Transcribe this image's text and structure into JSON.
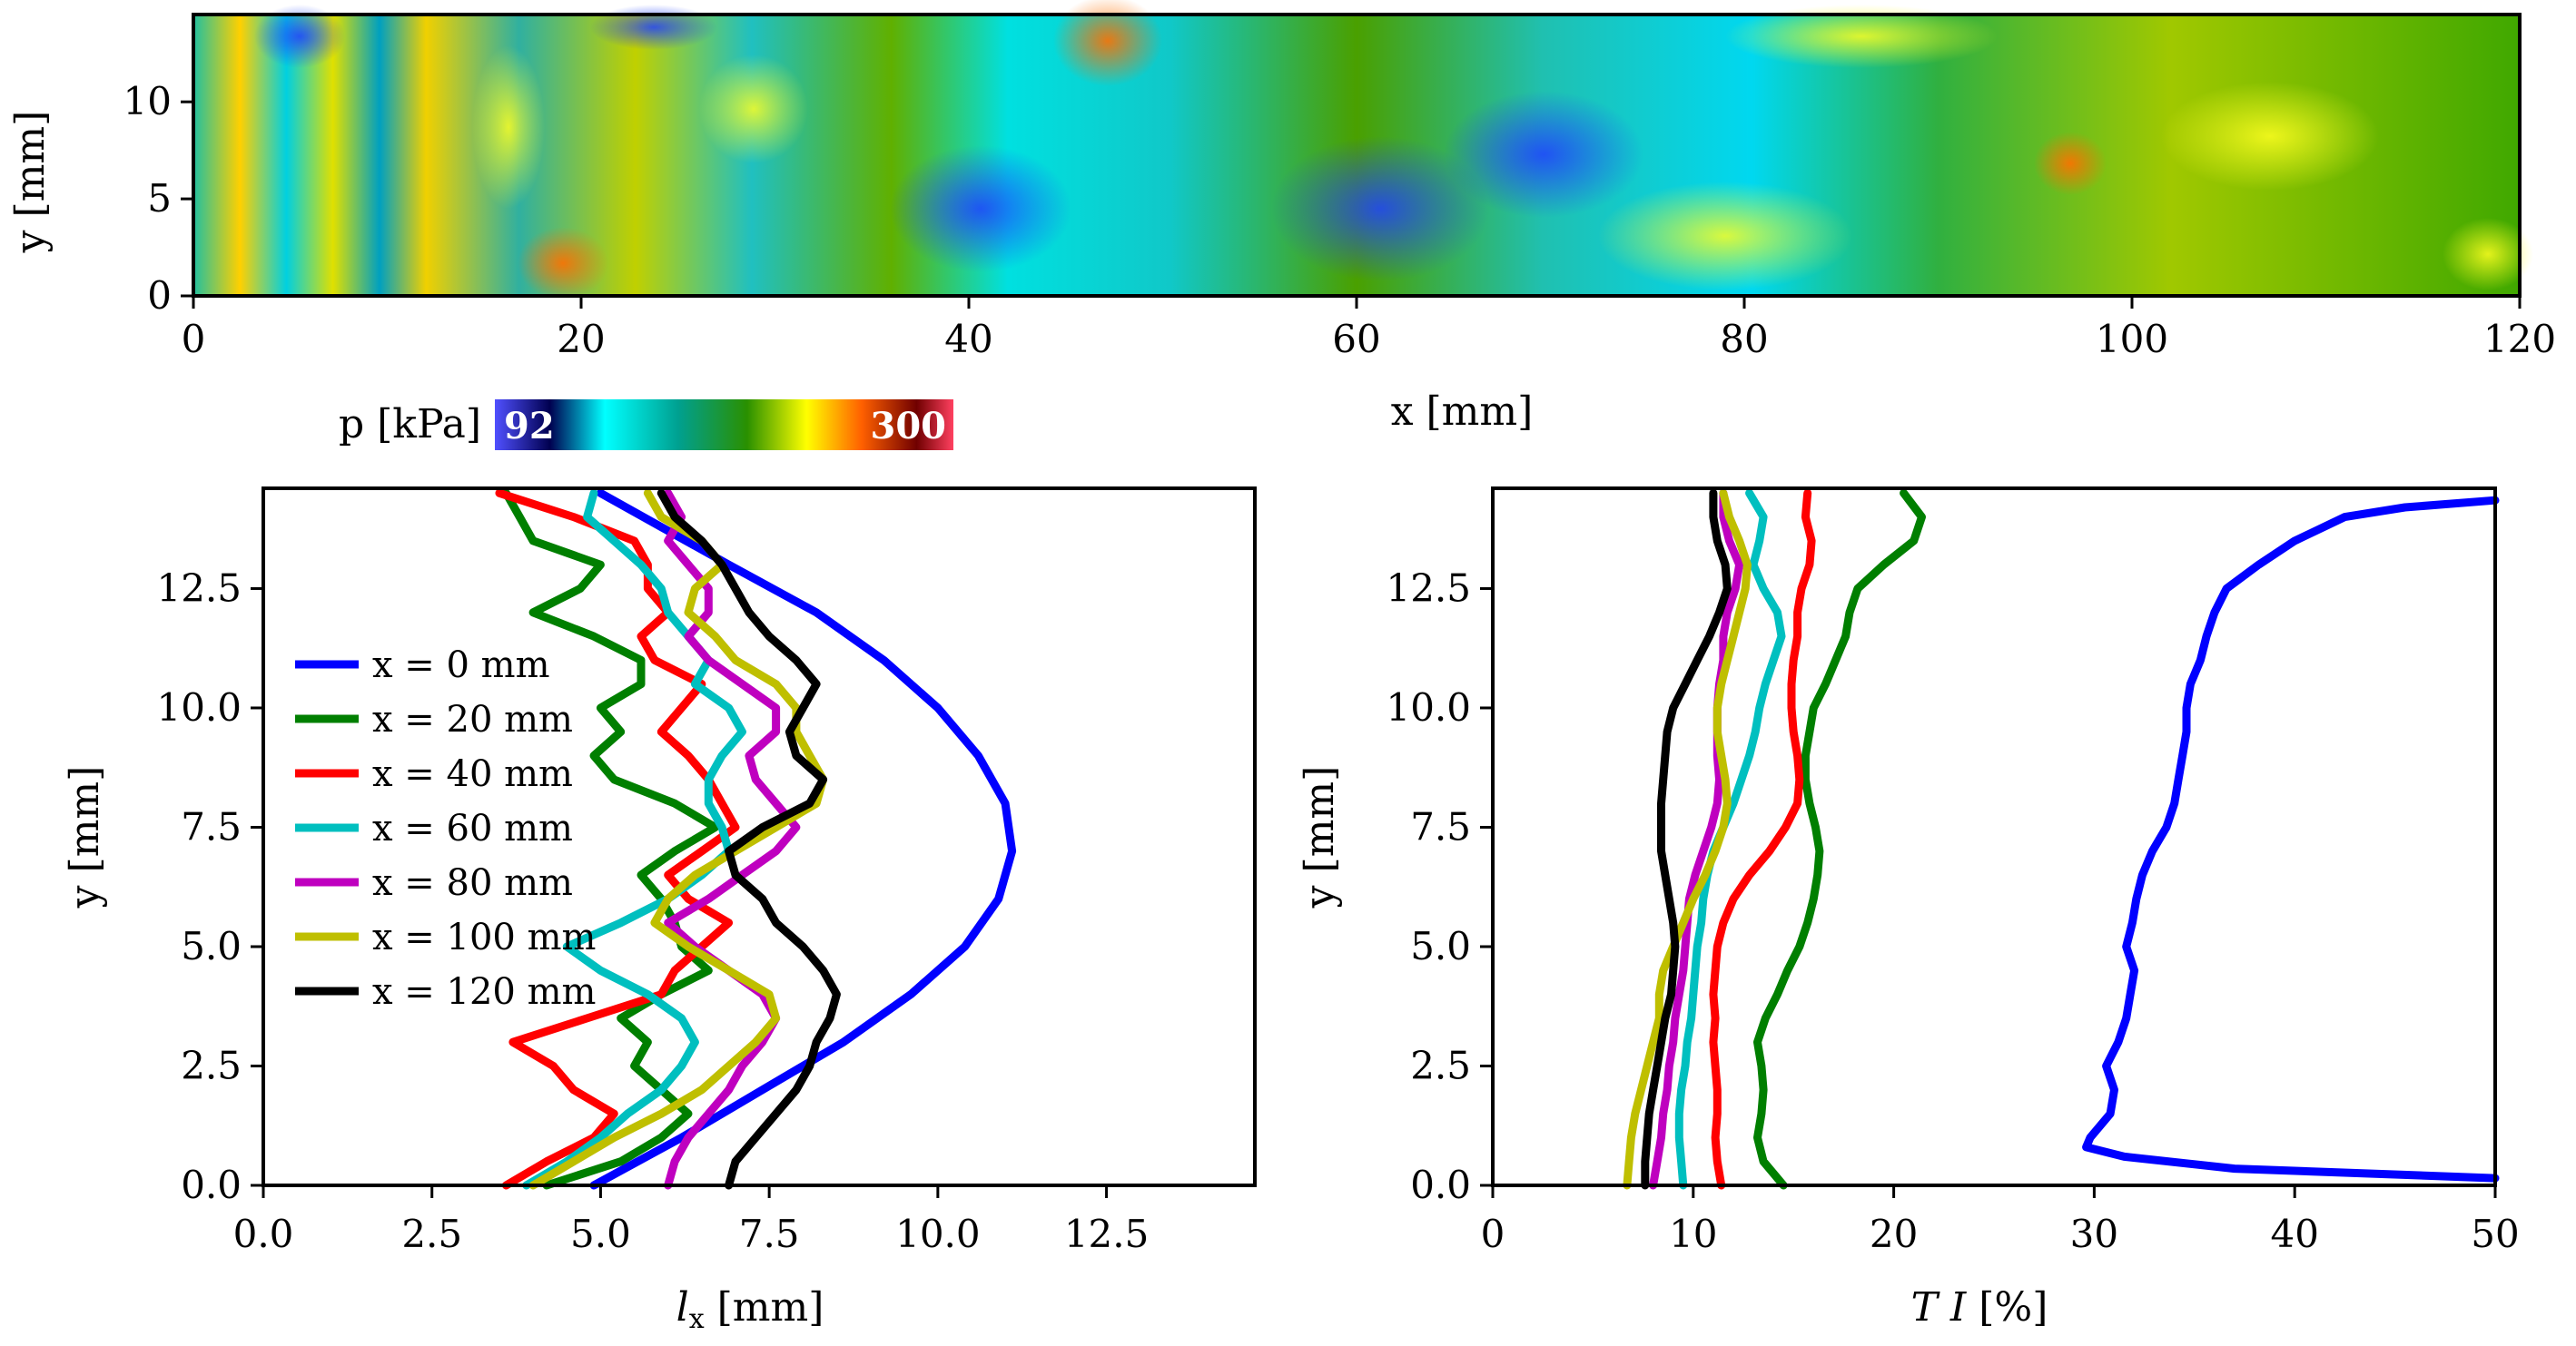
{
  "colors": {
    "series": [
      "#0000ff",
      "#007f00",
      "#ff0000",
      "#00bfbf",
      "#bf00bf",
      "#bfbf00",
      "#000000"
    ]
  },
  "chart_data": [
    {
      "type": "heatmap",
      "title": "",
      "xlabel": "x [mm]",
      "ylabel": "y [mm]",
      "xlim": [
        0,
        120
      ],
      "ylim": [
        0,
        14.5
      ],
      "xticks": [
        "0",
        "20",
        "40",
        "60",
        "80",
        "100",
        "120"
      ],
      "yticks": [
        "0",
        "5",
        "10"
      ],
      "colorbar": {
        "label": "p [kPa]",
        "min_label": "92",
        "max_label": "300",
        "min": 92,
        "max": 300
      },
      "regions": [
        {
          "x0": 0,
          "x1": 12,
          "value": 200
        },
        {
          "x0": 12,
          "x1": 23,
          "value": 195
        },
        {
          "x0": 23,
          "x1": 38,
          "value": 190
        },
        {
          "x0": 38,
          "x1": 50,
          "value": 150
        },
        {
          "x0": 50,
          "x1": 66,
          "value": 180
        },
        {
          "x0": 66,
          "x1": 84,
          "value": 140
        },
        {
          "x0": 84,
          "x1": 100,
          "value": 185
        },
        {
          "x0": 100,
          "x1": 120,
          "value": 190
        }
      ]
    },
    {
      "type": "line",
      "xlabel": "l_x [mm]",
      "ylabel": "y [mm]",
      "xlim": [
        0,
        14.7
      ],
      "ylim": [
        0,
        14.6
      ],
      "xticks": [
        "0.0",
        "2.5",
        "5.0",
        "7.5",
        "10.0",
        "12.5"
      ],
      "yticks": [
        "0.0",
        "2.5",
        "5.0",
        "7.5",
        "10.0",
        "12.5"
      ],
      "legend": {
        "placement": "center-left"
      },
      "series": [
        {
          "name": "x = 0 mm",
          "y": [
            0,
            1,
            2,
            3,
            4,
            5,
            6,
            7,
            8,
            9,
            10,
            11,
            12,
            13,
            14.5
          ],
          "x": [
            4.9,
            6.2,
            7.4,
            8.6,
            9.6,
            10.4,
            10.9,
            11.1,
            11.0,
            10.6,
            10.0,
            9.2,
            8.2,
            6.9,
            5.0
          ]
        },
        {
          "name": "x = 20 mm",
          "y": [
            0,
            0.5,
            1.0,
            1.5,
            2.0,
            2.5,
            3.0,
            3.5,
            4.0,
            4.5,
            5.0,
            5.5,
            6.0,
            6.5,
            7.0,
            7.5,
            8.0,
            8.5,
            9.0,
            9.5,
            10.0,
            10.5,
            11.0,
            11.5,
            12.0,
            12.5,
            13.0,
            13.5,
            14.0,
            14.5
          ],
          "x": [
            4.2,
            5.3,
            5.9,
            6.3,
            5.9,
            5.5,
            5.7,
            5.3,
            5.9,
            6.6,
            6.2,
            6.1,
            5.9,
            5.6,
            6.1,
            6.7,
            6.1,
            5.2,
            4.9,
            5.3,
            5.0,
            5.6,
            5.6,
            4.9,
            4.0,
            4.7,
            5.0,
            4.0,
            3.8,
            3.6
          ]
        },
        {
          "name": "x = 40 mm",
          "y": [
            0,
            0.5,
            1.0,
            1.5,
            2.0,
            2.5,
            3.0,
            3.5,
            4.0,
            4.5,
            5.0,
            5.5,
            6.0,
            6.5,
            7.0,
            7.5,
            8.0,
            8.5,
            9.0,
            9.5,
            10.0,
            10.5,
            11.0,
            11.5,
            12.0,
            12.5,
            13.0,
            13.5,
            14.0,
            14.5
          ],
          "x": [
            3.6,
            4.2,
            4.9,
            5.2,
            4.6,
            4.3,
            3.7,
            4.8,
            5.9,
            6.1,
            6.5,
            6.9,
            6.3,
            6.0,
            6.5,
            7.0,
            6.8,
            6.6,
            6.3,
            5.9,
            6.2,
            6.5,
            5.8,
            5.6,
            6.0,
            5.7,
            5.7,
            5.5,
            4.6,
            3.5
          ]
        },
        {
          "name": "x = 60 mm",
          "y": [
            0,
            0.5,
            1.0,
            1.5,
            2.0,
            2.5,
            3.0,
            3.5,
            4.0,
            4.5,
            5.0,
            5.5,
            6.0,
            6.5,
            7.0,
            7.5,
            8.0,
            8.5,
            9.0,
            9.5,
            10.0,
            10.5,
            11.0,
            11.5,
            12.0,
            12.5,
            13.0,
            13.5,
            14.0,
            14.5
          ],
          "x": [
            3.9,
            4.5,
            5.0,
            5.4,
            5.9,
            6.2,
            6.4,
            6.2,
            5.7,
            5.0,
            4.5,
            5.3,
            6.0,
            6.5,
            6.9,
            6.8,
            6.6,
            6.6,
            6.8,
            7.1,
            6.9,
            6.4,
            6.6,
            6.3,
            6.0,
            5.9,
            5.6,
            5.2,
            4.8,
            4.9
          ]
        },
        {
          "name": "x = 80 mm",
          "y": [
            0,
            0.5,
            1.0,
            1.5,
            2.0,
            2.5,
            3.0,
            3.5,
            4.0,
            4.5,
            5.0,
            5.5,
            6.0,
            6.5,
            7.0,
            7.5,
            8.0,
            8.5,
            9.0,
            9.5,
            10.0,
            10.5,
            11.0,
            11.5,
            12.0,
            12.5,
            13.0,
            13.5,
            14.0,
            14.5
          ],
          "x": [
            6.0,
            6.1,
            6.3,
            6.6,
            6.9,
            7.1,
            7.4,
            7.6,
            7.4,
            6.9,
            6.4,
            6.0,
            6.6,
            7.1,
            7.6,
            7.9,
            7.6,
            7.3,
            7.2,
            7.6,
            7.6,
            7.1,
            6.6,
            6.3,
            6.6,
            6.6,
            6.3,
            6.0,
            6.2,
            6.0
          ]
        },
        {
          "name": "x = 100 mm",
          "y": [
            0,
            0.5,
            1.0,
            1.5,
            2.0,
            2.5,
            3.0,
            3.5,
            4.0,
            4.5,
            5.0,
            5.5,
            6.0,
            6.5,
            7.0,
            7.5,
            8.0,
            8.5,
            9.0,
            9.5,
            10.0,
            10.5,
            11.0,
            11.5,
            12.0,
            12.5,
            13.0,
            13.5,
            14.0,
            14.5
          ],
          "x": [
            4.0,
            4.6,
            5.2,
            5.9,
            6.5,
            6.9,
            7.3,
            7.6,
            7.5,
            6.9,
            6.3,
            5.8,
            6.0,
            6.4,
            7.0,
            7.6,
            8.2,
            8.3,
            8.1,
            7.9,
            7.9,
            7.6,
            7.0,
            6.7,
            6.3,
            6.4,
            6.8,
            6.5,
            5.9,
            5.7
          ]
        },
        {
          "name": "x = 120 mm",
          "y": [
            0,
            0.5,
            1.0,
            1.5,
            2.0,
            2.5,
            3.0,
            3.5,
            4.0,
            4.5,
            5.0,
            5.5,
            6.0,
            6.5,
            7.0,
            7.5,
            8.0,
            8.5,
            9.0,
            9.5,
            10.0,
            10.5,
            11.0,
            11.5,
            12.0,
            12.5,
            13.0,
            13.5,
            14.0,
            14.5
          ],
          "x": [
            6.9,
            7.0,
            7.3,
            7.6,
            7.9,
            8.1,
            8.2,
            8.4,
            8.5,
            8.3,
            8.0,
            7.6,
            7.4,
            7.0,
            6.9,
            7.4,
            8.1,
            8.3,
            7.9,
            7.8,
            8.0,
            8.2,
            7.9,
            7.5,
            7.2,
            7.0,
            6.8,
            6.5,
            6.1,
            5.9
          ]
        }
      ]
    },
    {
      "type": "line",
      "xlabel": "TI [%]",
      "ylabel": "y [mm]",
      "xlim": [
        0,
        50
      ],
      "ylim": [
        0,
        14.6
      ],
      "xticks": [
        "0",
        "10",
        "20",
        "30",
        "40",
        "50"
      ],
      "yticks": [
        "0.0",
        "2.5",
        "5.0",
        "7.5",
        "10.0",
        "12.5"
      ],
      "series": [
        {
          "name": "x = 0 mm",
          "y": [
            0.15,
            0.35,
            0.6,
            0.8,
            1.0,
            1.5,
            2.0,
            2.5,
            3.0,
            3.5,
            4.0,
            4.5,
            5.0,
            5.5,
            6.0,
            6.5,
            7.0,
            7.5,
            8.0,
            8.5,
            9.0,
            9.5,
            10.0,
            10.5,
            11.0,
            11.5,
            12.0,
            12.5,
            13.0,
            13.5,
            14.0,
            14.2,
            14.35
          ],
          "x": [
            50,
            37,
            31.5,
            29.6,
            29.8,
            30.8,
            31.0,
            30.6,
            31.2,
            31.6,
            31.8,
            32.0,
            31.6,
            31.9,
            32.1,
            32.4,
            32.9,
            33.6,
            34.0,
            34.2,
            34.4,
            34.6,
            34.6,
            34.8,
            35.3,
            35.6,
            36.0,
            36.6,
            38.2,
            40.0,
            42.5,
            45.5,
            50
          ]
        },
        {
          "name": "x = 20 mm",
          "y": [
            0,
            0.5,
            1.0,
            1.5,
            2.0,
            2.5,
            3.0,
            3.5,
            4.0,
            4.5,
            5.0,
            5.5,
            6.0,
            6.5,
            7.0,
            7.5,
            8.0,
            8.5,
            9.0,
            9.5,
            10.0,
            10.5,
            11.0,
            11.5,
            12.0,
            12.5,
            13.0,
            13.5,
            14.0,
            14.5
          ],
          "x": [
            14.5,
            13.5,
            13.2,
            13.4,
            13.5,
            13.4,
            13.2,
            13.6,
            14.2,
            14.7,
            15.3,
            15.7,
            16.0,
            16.2,
            16.3,
            16.1,
            15.8,
            15.6,
            15.6,
            15.8,
            16.0,
            16.6,
            17.1,
            17.6,
            17.8,
            18.2,
            19.5,
            21.0,
            21.4,
            20.5
          ]
        },
        {
          "name": "x = 40 mm",
          "y": [
            0,
            0.5,
            1.0,
            1.5,
            2.0,
            2.5,
            3.0,
            3.5,
            4.0,
            4.5,
            5.0,
            5.5,
            6.0,
            6.5,
            7.0,
            7.5,
            8.0,
            8.5,
            9.0,
            9.5,
            10.0,
            10.5,
            11.0,
            11.5,
            12.0,
            12.5,
            13.0,
            13.5,
            14.0,
            14.5
          ],
          "x": [
            11.4,
            11.2,
            11.1,
            11.2,
            11.2,
            11.1,
            11.0,
            11.1,
            11.0,
            11.1,
            11.2,
            11.5,
            12.0,
            12.8,
            13.8,
            14.6,
            15.2,
            15.3,
            15.2,
            15.0,
            14.9,
            14.9,
            15.0,
            15.2,
            15.2,
            15.4,
            15.8,
            15.9,
            15.6,
            15.7
          ]
        },
        {
          "name": "x = 60 mm",
          "y": [
            0,
            0.5,
            1.0,
            1.5,
            2.0,
            2.5,
            3.0,
            3.5,
            4.0,
            4.5,
            5.0,
            5.5,
            6.0,
            6.5,
            7.0,
            7.5,
            8.0,
            8.5,
            9.0,
            9.5,
            10.0,
            10.5,
            11.0,
            11.5,
            12.0,
            12.5,
            13.0,
            13.5,
            14.0,
            14.5
          ],
          "x": [
            9.5,
            9.4,
            9.3,
            9.3,
            9.4,
            9.6,
            9.7,
            9.9,
            10.0,
            10.1,
            10.2,
            10.4,
            10.5,
            10.7,
            11.0,
            11.5,
            12.0,
            12.4,
            12.8,
            13.1,
            13.3,
            13.6,
            14.0,
            14.4,
            14.2,
            13.5,
            13.0,
            13.3,
            13.5,
            12.8
          ]
        },
        {
          "name": "x = 80 mm",
          "y": [
            0,
            0.5,
            1.0,
            1.5,
            2.0,
            2.5,
            3.0,
            3.5,
            4.0,
            4.5,
            5.0,
            5.5,
            6.0,
            6.5,
            7.0,
            7.5,
            8.0,
            8.5,
            9.0,
            9.5,
            10.0,
            10.5,
            11.0,
            11.5,
            12.0,
            12.5,
            13.0,
            13.5,
            14.0,
            14.5
          ],
          "x": [
            8.0,
            8.2,
            8.4,
            8.5,
            8.7,
            8.8,
            9.0,
            9.1,
            9.3,
            9.5,
            9.6,
            9.7,
            9.8,
            10.1,
            10.5,
            10.9,
            11.2,
            11.3,
            11.2,
            11.2,
            11.2,
            11.3,
            11.5,
            11.5,
            11.7,
            12.1,
            12.3,
            11.8,
            11.5,
            11.5
          ]
        },
        {
          "name": "x = 100 mm",
          "y": [
            0,
            0.5,
            1.0,
            1.5,
            2.0,
            2.5,
            3.0,
            3.5,
            4.0,
            4.5,
            5.0,
            5.5,
            6.0,
            6.5,
            7.0,
            7.5,
            8.0,
            8.5,
            9.0,
            9.5,
            10.0,
            10.5,
            11.0,
            11.5,
            12.0,
            12.5,
            13.0,
            13.5,
            14.0,
            14.5
          ],
          "x": [
            6.7,
            6.8,
            6.9,
            7.1,
            7.4,
            7.7,
            8.0,
            8.3,
            8.3,
            8.5,
            9.0,
            9.5,
            10.0,
            10.6,
            11.1,
            11.5,
            11.7,
            11.6,
            11.4,
            11.2,
            11.2,
            11.4,
            11.7,
            12.0,
            12.3,
            12.6,
            12.7,
            12.3,
            11.8,
            11.5
          ]
        },
        {
          "name": "x = 120 mm",
          "y": [
            0,
            0.5,
            1.0,
            1.5,
            2.0,
            2.5,
            3.0,
            3.5,
            4.0,
            4.5,
            5.0,
            5.5,
            6.0,
            6.5,
            7.0,
            7.5,
            8.0,
            8.5,
            9.0,
            9.5,
            10.0,
            10.5,
            11.0,
            11.5,
            12.0,
            12.5,
            13.0,
            13.5,
            14.0,
            14.5
          ],
          "x": [
            7.6,
            7.6,
            7.7,
            7.8,
            8.0,
            8.2,
            8.4,
            8.6,
            8.9,
            9.0,
            9.1,
            9.0,
            8.8,
            8.6,
            8.4,
            8.4,
            8.4,
            8.5,
            8.6,
            8.7,
            9.0,
            9.6,
            10.2,
            10.8,
            11.3,
            11.7,
            11.6,
            11.2,
            11.0,
            11.0
          ]
        }
      ]
    }
  ]
}
